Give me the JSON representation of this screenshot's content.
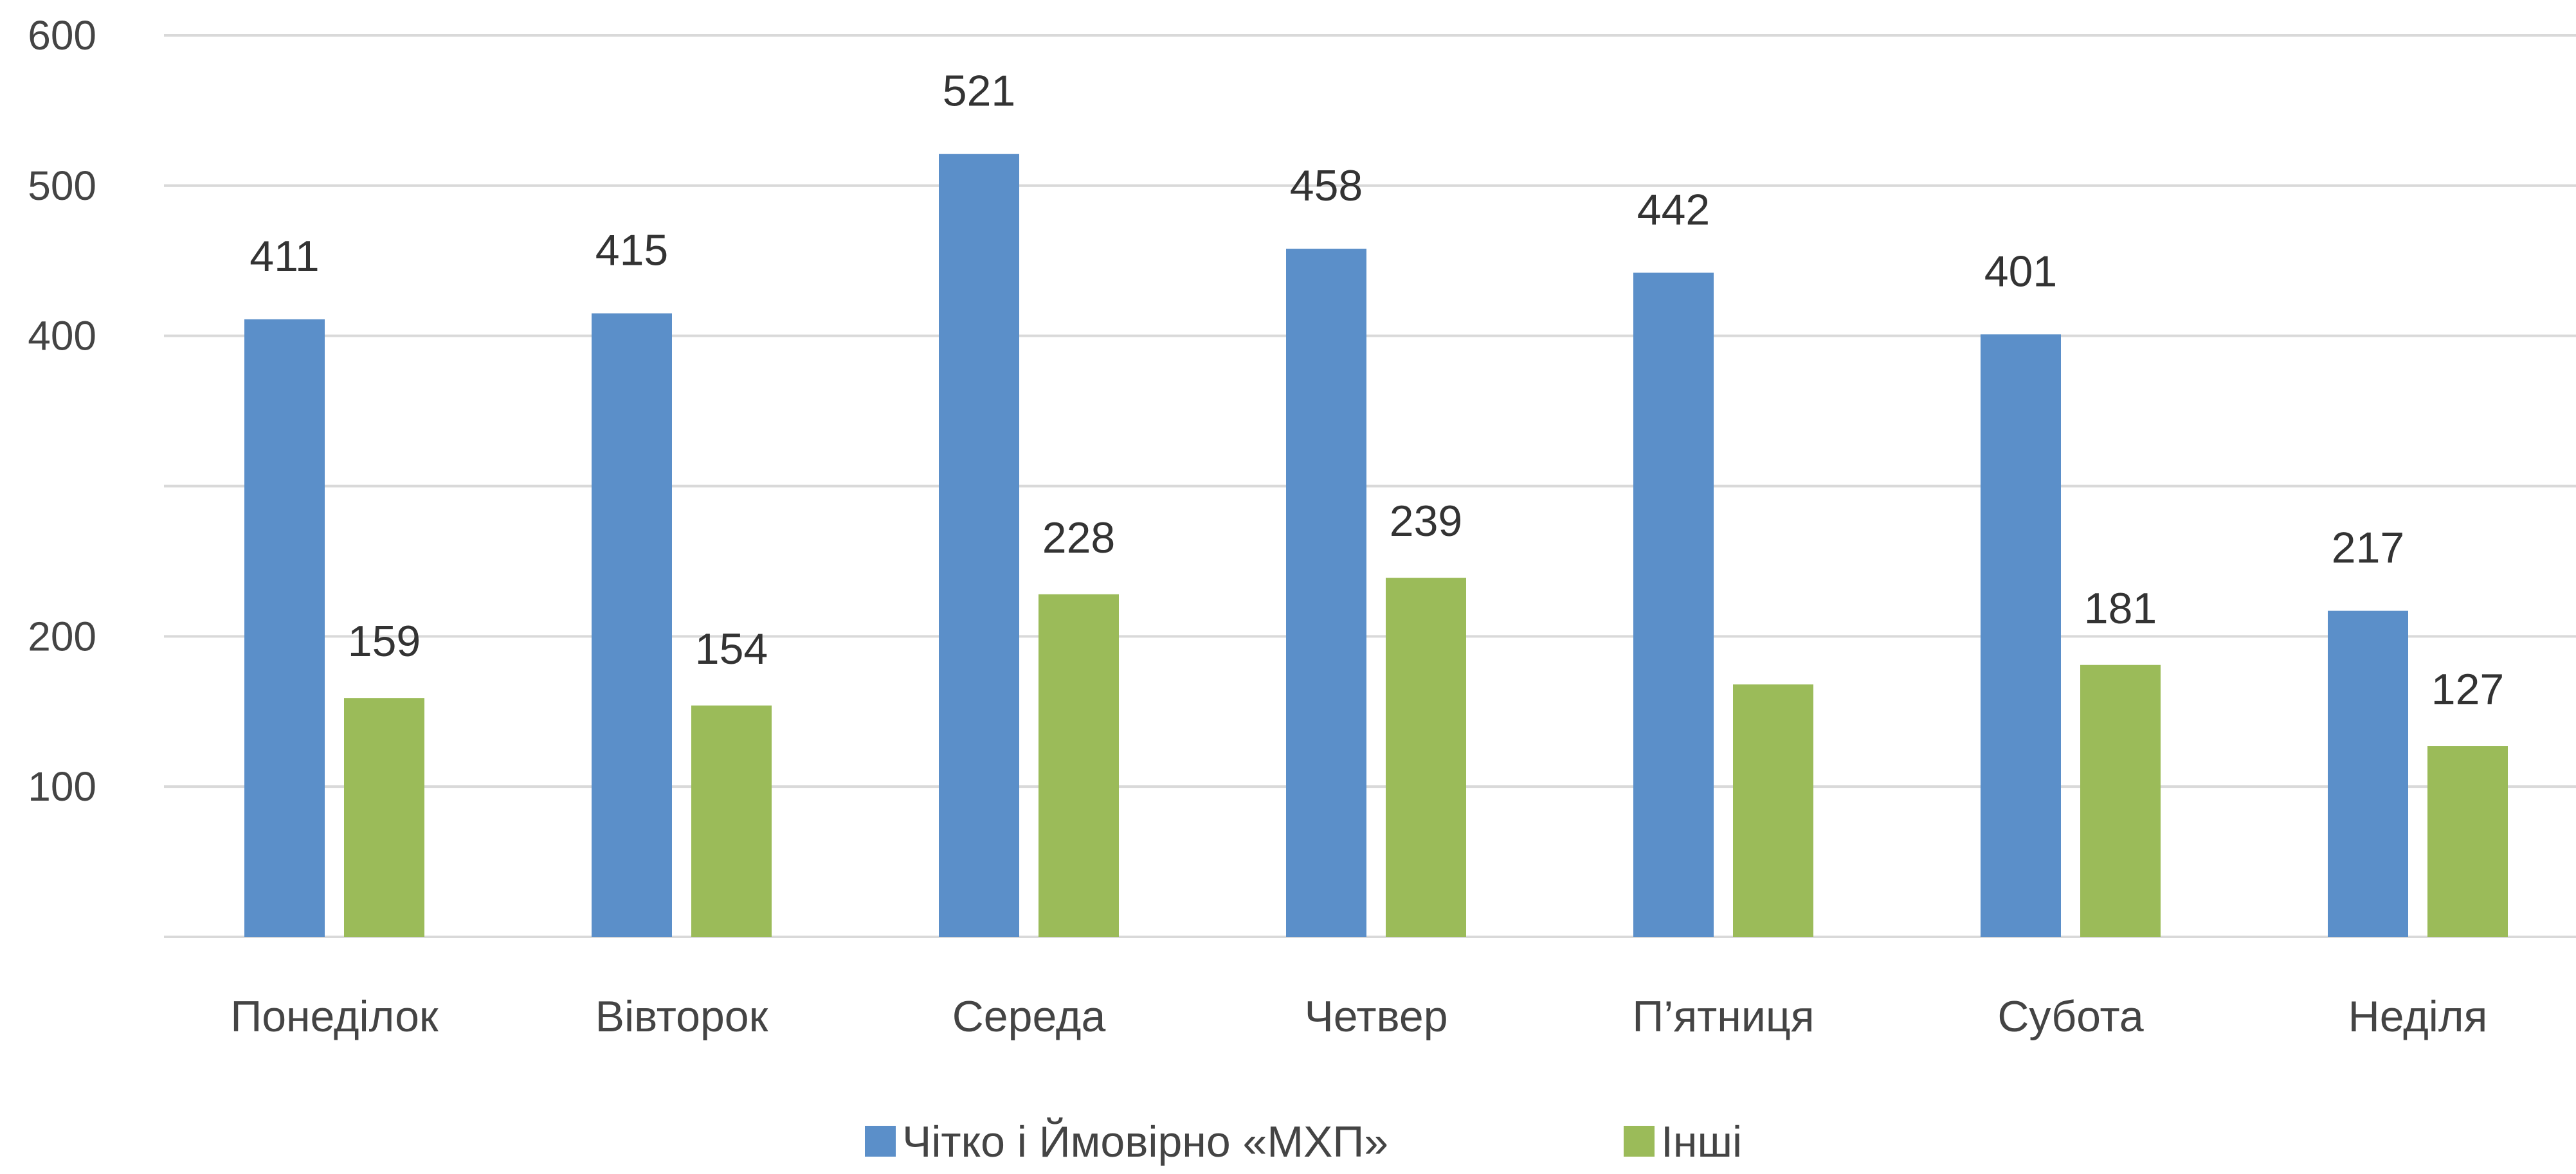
{
  "chart_data": {
    "type": "bar",
    "categories": [
      "Понеділок",
      "Вівторок",
      "Середа",
      "Четвер",
      "П’ятниця",
      "Субота",
      "Неділя"
    ],
    "series": [
      {
        "name": "Чітко і Ймовірно «МХП»",
        "values": [
          411,
          415,
          521,
          458,
          442,
          401,
          217
        ],
        "data_labels": [
          "411",
          "415",
          "521",
          "458",
          "442",
          "401",
          "217"
        ],
        "color": "#5b8fc9"
      },
      {
        "name": "Інші",
        "values": [
          159,
          154,
          228,
          239,
          168,
          181,
          127
        ],
        "data_labels": [
          "159",
          "154",
          "228",
          "239",
          "",
          "181",
          "127"
        ],
        "color": "#9bbb59"
      }
    ],
    "y_ticks": [
      {
        "value": 100,
        "label": "100"
      },
      {
        "value": 200,
        "label": "200"
      },
      {
        "value": 300,
        "label": ""
      },
      {
        "value": 400,
        "label": "400"
      },
      {
        "value": 500,
        "label": "500"
      },
      {
        "value": 600,
        "label": "600"
      }
    ],
    "ylim": [
      0,
      600
    ],
    "grid": true,
    "legend_position": "bottom"
  }
}
